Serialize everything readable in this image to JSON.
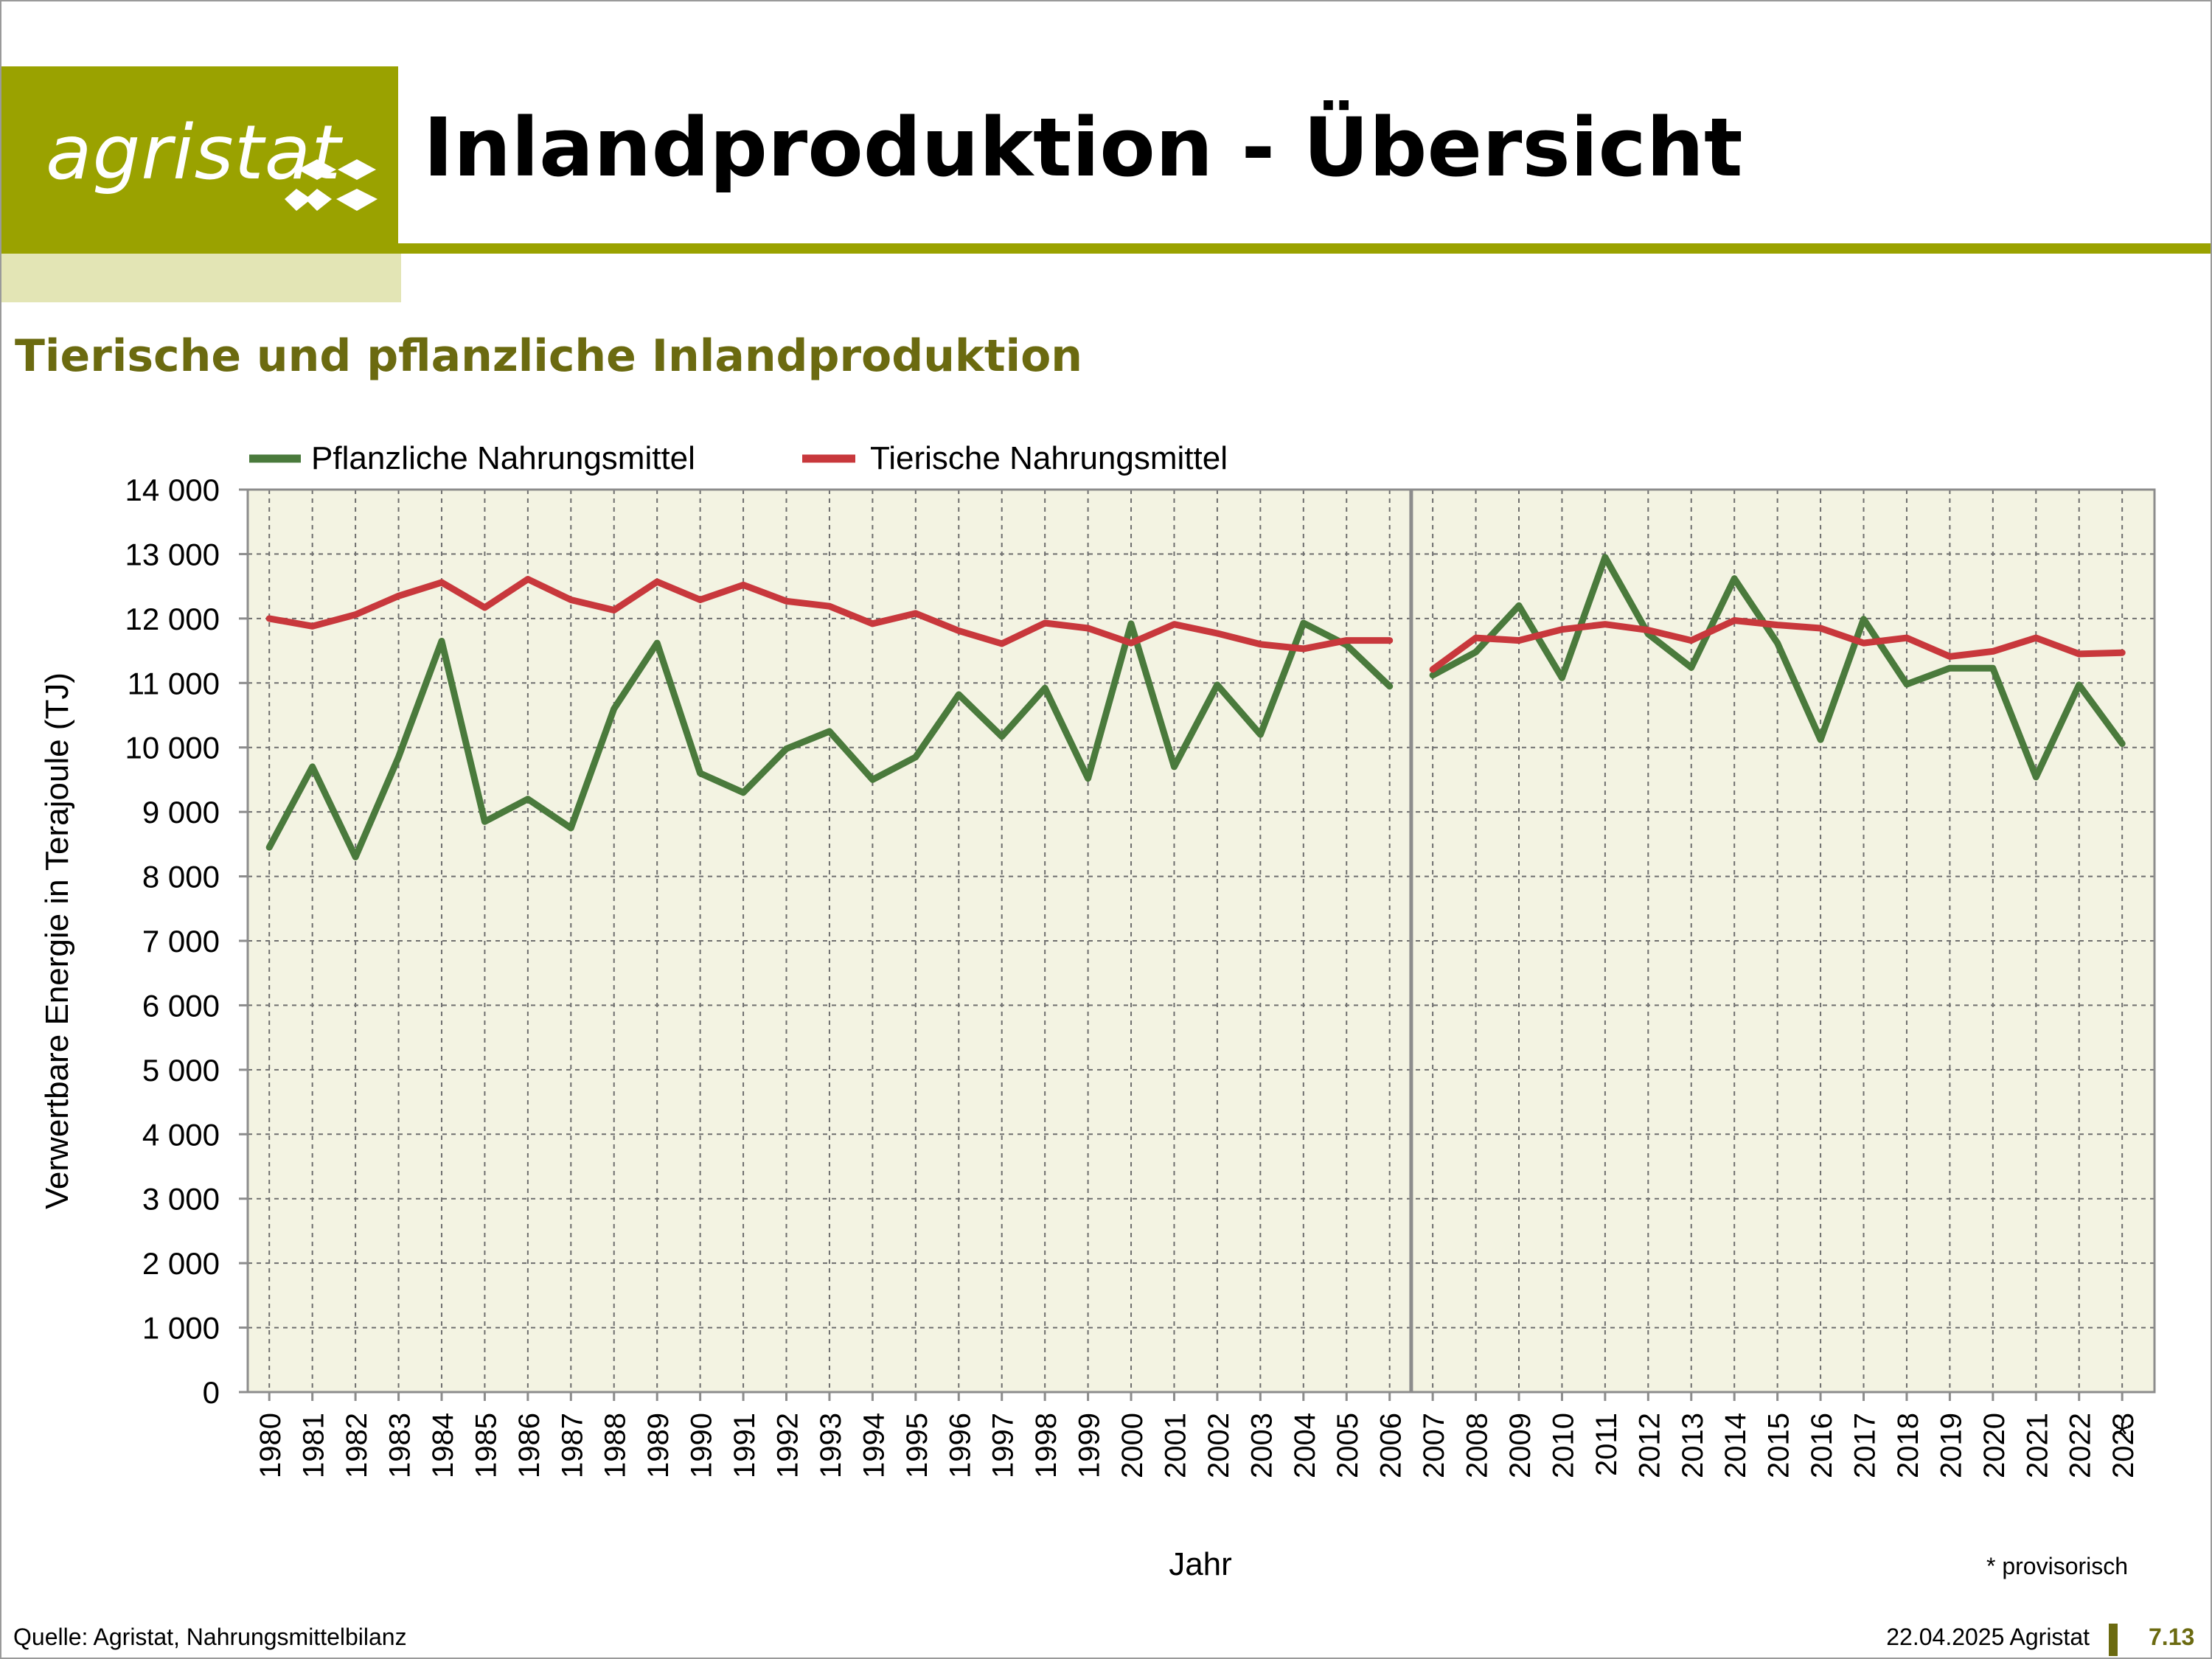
{
  "header": {
    "logo_text": "agristat",
    "title": "Inlandproduktion - Übersicht"
  },
  "subtitle": "Tierische und pflanzliche Inlandproduktion",
  "colors": {
    "brand": "#9aa200",
    "brand_light": "#e3e5b5",
    "subtitle": "#6b6a10",
    "plot_bg": "#f3f3e2",
    "series_plant": "#4a7a3c",
    "series_animal": "#c8383c"
  },
  "chart_data": {
    "type": "line",
    "title": "",
    "xlabel": "Jahr",
    "ylabel": "Verwertbare Energie in Terajoule (TJ)",
    "ylim": [
      0,
      14000
    ],
    "yticks": [
      "0",
      "1 000",
      "2 000",
      "3 000",
      "4 000",
      "5 000",
      "6 000",
      "7 000",
      "8 000",
      "9 000",
      "10 000",
      "11 000",
      "12 000",
      "13 000",
      "14 000"
    ],
    "grid": true,
    "legend": "top-left",
    "break_after": "2006",
    "provisional_marker": "*",
    "provisional_year": "2023",
    "categories": [
      "1980",
      "1981",
      "1982",
      "1983",
      "1984",
      "1985",
      "1986",
      "1987",
      "1988",
      "1989",
      "1990",
      "1991",
      "1992",
      "1993",
      "1994",
      "1995",
      "1996",
      "1997",
      "1998",
      "1999",
      "2000",
      "2001",
      "2002",
      "2003",
      "2004",
      "2005",
      "2006",
      "2007",
      "2008",
      "2009",
      "2010",
      "2011",
      "2012",
      "2013",
      "2014",
      "2015",
      "2016",
      "2017",
      "2018",
      "2019",
      "2020",
      "2021",
      "2022",
      "2023"
    ],
    "series": [
      {
        "name": "Pflanzliche Nahrungsmittel",
        "values": [
          8450,
          9700,
          8300,
          9850,
          11650,
          8850,
          9200,
          8750,
          10600,
          11620,
          9600,
          9300,
          9980,
          10250,
          9500,
          9850,
          10820,
          10170,
          10920,
          9520,
          11920,
          9700,
          10970,
          10200,
          11930,
          11590,
          10950,
          11120,
          11480,
          12200,
          11080,
          12950,
          11760,
          11240,
          12620,
          11620,
          10120,
          11990,
          10980,
          11230,
          11230,
          9540,
          10970,
          10060
        ]
      },
      {
        "name": "Tierische Nahrungsmittel",
        "values": [
          12000,
          11880,
          12060,
          12350,
          12560,
          12170,
          12610,
          12290,
          12130,
          12570,
          12290,
          12520,
          12270,
          12190,
          11920,
          12080,
          11810,
          11610,
          11930,
          11850,
          11620,
          11910,
          11770,
          11600,
          11530,
          11660,
          11660,
          11210,
          11700,
          11660,
          11830,
          11910,
          11820,
          11660,
          11970,
          11900,
          11850,
          11620,
          11700,
          11410,
          11490,
          11700,
          11450,
          11470
        ]
      }
    ]
  },
  "footnote": "* provisorisch",
  "footer": {
    "source": "Quelle: Agristat, Nahrungsmittelbilanz",
    "date": "22.04.2025 Agristat",
    "page": "7.13"
  }
}
